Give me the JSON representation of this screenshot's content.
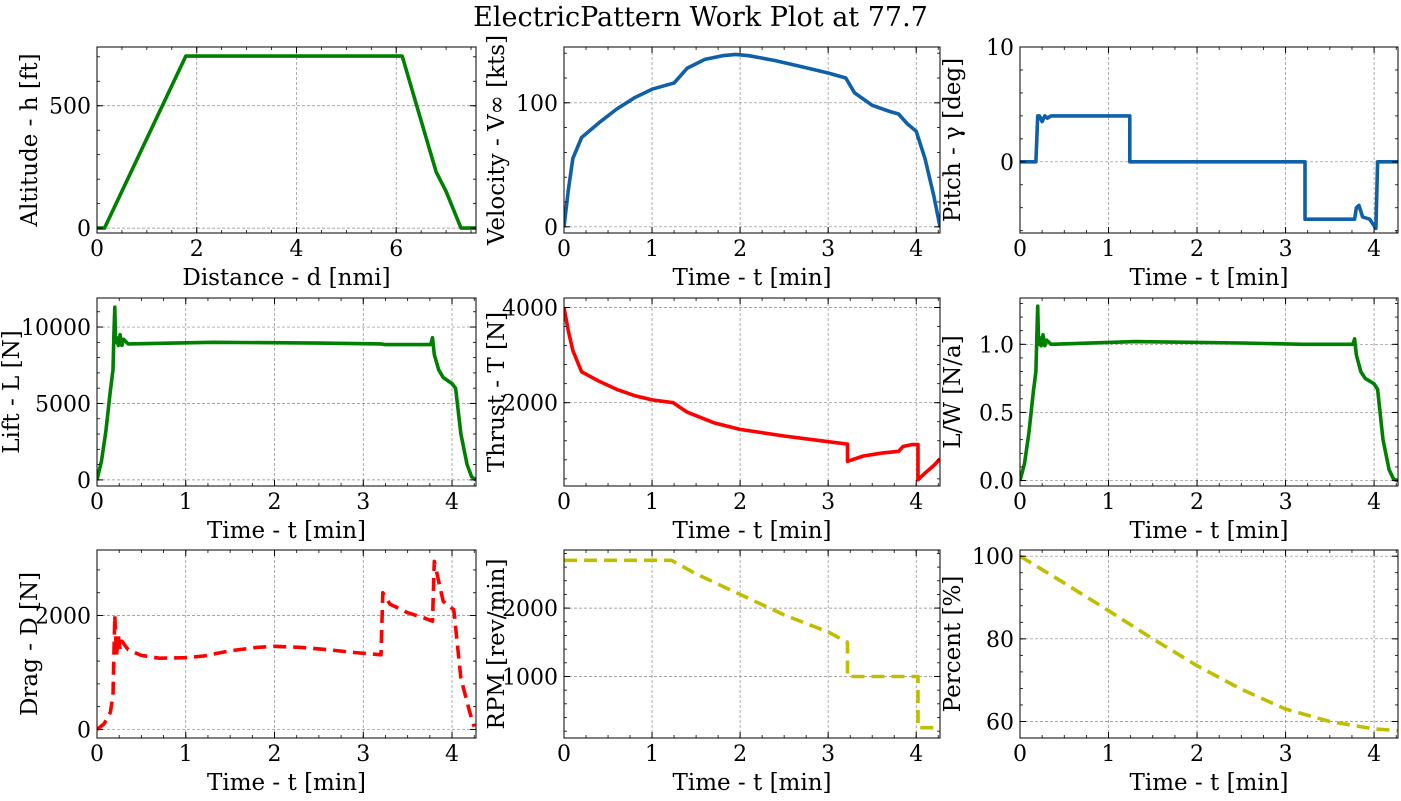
{
  "figure": {
    "title": "ElectricPattern Work Plot at 77.7"
  },
  "chart_data": [
    {
      "id": "altitude",
      "type": "line",
      "color": "#008000",
      "dash": false,
      "xlabel": "Distance - d [nmi]",
      "ylabel": "Altitude - h [ft]",
      "xlim": [
        0,
        7.6
      ],
      "ylim": [
        -20,
        740
      ],
      "xticks": [
        0,
        2,
        4,
        6
      ],
      "yticks": [
        0,
        500
      ],
      "grid": true,
      "series": [
        {
          "x": [
            0,
            0.15,
            1.78,
            6.12,
            6.8,
            7.0,
            7.3,
            7.6
          ],
          "y": [
            0,
            0,
            703,
            703,
            230,
            150,
            0,
            0
          ]
        }
      ]
    },
    {
      "id": "velocity",
      "type": "line",
      "color": "#1060a8",
      "dash": false,
      "xlabel": "Time - t [min]",
      "ylabel": "Velocity - V∞ [kts]",
      "xlim": [
        0,
        4.27
      ],
      "ylim": [
        -5,
        145
      ],
      "xticks": [
        0,
        1,
        2,
        3,
        4
      ],
      "yticks": [
        0,
        100
      ],
      "grid": true,
      "series": [
        {
          "x": [
            0,
            0.05,
            0.1,
            0.2,
            0.4,
            0.6,
            0.8,
            1.0,
            1.2,
            1.25,
            1.4,
            1.6,
            1.8,
            1.95,
            2.1,
            2.4,
            2.7,
            3.0,
            3.2,
            3.3,
            3.5,
            3.7,
            3.8,
            3.9,
            4.0,
            4.1,
            4.2,
            4.27
          ],
          "y": [
            0,
            30,
            55,
            72,
            84,
            95,
            104,
            111,
            115,
            116,
            128,
            135,
            138,
            139,
            138,
            134,
            129,
            124,
            120,
            108,
            98,
            93,
            91,
            83,
            77,
            55,
            25,
            0
          ]
        }
      ]
    },
    {
      "id": "pitch",
      "type": "line",
      "color": "#1060a8",
      "dash": false,
      "xlabel": "Time - t [min]",
      "ylabel": "Pitch - γ [deg]",
      "xlim": [
        0,
        4.27
      ],
      "ylim": [
        -6.2,
        10
      ],
      "xticks": [
        0,
        1,
        2,
        3,
        4
      ],
      "yticks": [
        0,
        10
      ],
      "grid": true,
      "series": [
        {
          "x": [
            0,
            0.18,
            0.2,
            0.22,
            0.25,
            0.28,
            0.31,
            0.35,
            1.24,
            1.24,
            3.22,
            3.22,
            3.78,
            3.8,
            3.83,
            3.87,
            3.95,
            4.02,
            4.04,
            4.27
          ],
          "y": [
            0,
            0,
            4,
            4,
            3.5,
            4,
            3.8,
            4,
            4,
            0,
            0,
            -5,
            -5,
            -4,
            -3.8,
            -4.8,
            -5,
            -5.8,
            0,
            0
          ]
        }
      ]
    },
    {
      "id": "lift",
      "type": "line",
      "color": "#008000",
      "dash": false,
      "xlabel": "Time - t [min]",
      "ylabel": "Lift - L [N]",
      "xlim": [
        0,
        4.27
      ],
      "ylim": [
        -400,
        11900
      ],
      "xticks": [
        0,
        1,
        2,
        3,
        4
      ],
      "yticks": [
        0,
        5000,
        10000
      ],
      "grid": true,
      "series": [
        {
          "x": [
            0,
            0.05,
            0.1,
            0.15,
            0.18,
            0.19,
            0.2,
            0.21,
            0.22,
            0.24,
            0.26,
            0.28,
            0.3,
            0.35,
            1.3,
            2.5,
            3.2,
            3.25,
            3.76,
            3.78,
            3.8,
            3.85,
            3.9,
            4.0,
            4.04,
            4.1,
            4.17,
            4.22,
            4.27
          ],
          "y": [
            0,
            1200,
            3200,
            5800,
            7200,
            9500,
            11300,
            9000,
            9300,
            8800,
            9500,
            8800,
            9200,
            8900,
            9000,
            8950,
            8900,
            8850,
            8850,
            9300,
            8200,
            7200,
            6700,
            6300,
            6000,
            3000,
            1000,
            200,
            0
          ]
        }
      ]
    },
    {
      "id": "thrust",
      "type": "line",
      "color": "#ff0000",
      "dash": false,
      "xlabel": "Time - t [min]",
      "ylabel": "Thrust - T [N]",
      "xlim": [
        0,
        4.27
      ],
      "ylim": [
        250,
        4200
      ],
      "xticks": [
        0,
        1,
        2,
        3,
        4
      ],
      "yticks": [
        2000,
        4000
      ],
      "grid": true,
      "series": [
        {
          "x": [
            0,
            0.05,
            0.1,
            0.2,
            0.4,
            0.6,
            0.8,
            1.0,
            1.24,
            1.4,
            1.7,
            2.0,
            2.5,
            3.0,
            3.22,
            3.22,
            3.4,
            3.6,
            3.8,
            3.85,
            3.95,
            4.02,
            4.02,
            4.1,
            4.2,
            4.27
          ],
          "y": [
            4000,
            3500,
            3100,
            2650,
            2450,
            2280,
            2150,
            2060,
            2000,
            1800,
            1580,
            1440,
            1300,
            1180,
            1130,
            770,
            880,
            940,
            980,
            1080,
            1120,
            1120,
            380,
            520,
            680,
            820
          ]
        }
      ]
    },
    {
      "id": "load-factor",
      "type": "line",
      "color": "#008000",
      "dash": false,
      "xlabel": "Time - t [min]",
      "ylabel": "L/W [N/a]",
      "xlim": [
        0,
        4.27
      ],
      "ylim": [
        -0.04,
        1.34
      ],
      "xticks": [
        0,
        1,
        2,
        3,
        4
      ],
      "yticks": [
        0.0,
        0.5,
        1.0
      ],
      "ytick_labels": [
        "0.0",
        "0.5",
        "1.0"
      ],
      "grid": true,
      "series": [
        {
          "x": [
            0,
            0.05,
            0.1,
            0.15,
            0.18,
            0.19,
            0.2,
            0.21,
            0.22,
            0.24,
            0.26,
            0.28,
            0.3,
            0.35,
            1.3,
            2.5,
            3.2,
            3.25,
            3.76,
            3.78,
            3.8,
            3.85,
            3.9,
            4.0,
            4.04,
            4.1,
            4.17,
            4.22,
            4.27
          ],
          "y": [
            0,
            0.12,
            0.35,
            0.65,
            0.8,
            1.05,
            1.28,
            1.0,
            1.05,
            0.99,
            1.07,
            0.99,
            1.03,
            1.0,
            1.02,
            1.01,
            1.0,
            1.0,
            1.0,
            1.04,
            0.92,
            0.8,
            0.75,
            0.71,
            0.67,
            0.3,
            0.08,
            0.01,
            0
          ]
        }
      ]
    },
    {
      "id": "drag",
      "type": "line",
      "color": "#ff0000",
      "dash": true,
      "xlabel": "Time - t [min]",
      "ylabel": "Drag - D [N]",
      "xlim": [
        0,
        4.27
      ],
      "ylim": [
        -150,
        3150
      ],
      "xticks": [
        0,
        1,
        2,
        3,
        4
      ],
      "yticks": [
        0,
        2000
      ],
      "grid": true,
      "series": [
        {
          "x": [
            0,
            0.08,
            0.15,
            0.18,
            0.2,
            0.22,
            0.24,
            0.26,
            0.28,
            0.35,
            0.5,
            0.7,
            1.0,
            1.2,
            1.5,
            1.8,
            2.0,
            2.3,
            2.6,
            2.9,
            3.2,
            3.22,
            3.3,
            3.5,
            3.7,
            3.78,
            3.8,
            3.85,
            3.9,
            4.02,
            4.1,
            4.2,
            4.25
          ],
          "y": [
            0,
            100,
            300,
            600,
            2000,
            1300,
            1650,
            1400,
            1550,
            1400,
            1300,
            1250,
            1260,
            1290,
            1380,
            1440,
            1460,
            1440,
            1400,
            1350,
            1310,
            2400,
            2200,
            2050,
            1950,
            1900,
            2950,
            2600,
            2250,
            2100,
            900,
            300,
            50
          ]
        }
      ]
    },
    {
      "id": "rpm",
      "type": "line",
      "color": "#bfbf00",
      "dash": true,
      "xlabel": "Time - t [min]",
      "ylabel": "RPM [rev/min]",
      "xlim": [
        0,
        4.27
      ],
      "ylim": [
        100,
        2850
      ],
      "xticks": [
        0,
        1,
        2,
        3,
        4
      ],
      "yticks": [
        1000,
        2000
      ],
      "grid": true,
      "series": [
        {
          "x": [
            0,
            1.22,
            1.5,
            2.0,
            2.5,
            3.0,
            3.22,
            3.22,
            4.02,
            4.02,
            4.27
          ],
          "y": [
            2700,
            2700,
            2500,
            2200,
            1900,
            1650,
            1500,
            1000,
            1000,
            250,
            250
          ]
        }
      ]
    },
    {
      "id": "battery",
      "type": "line",
      "color": "#bfbf00",
      "dash": true,
      "xlabel": "Time - t [min]",
      "ylabel": "Percent [%]",
      "xlim": [
        0,
        4.27
      ],
      "ylim": [
        56,
        101.5
      ],
      "xticks": [
        0,
        1,
        2,
        3,
        4
      ],
      "yticks": [
        60,
        80,
        100
      ],
      "grid": true,
      "series": [
        {
          "x": [
            0,
            0.5,
            1.0,
            1.5,
            2.0,
            2.5,
            3.0,
            3.5,
            4.0,
            4.27
          ],
          "y": [
            100,
            93.5,
            86.8,
            80,
            73.5,
            67.8,
            63,
            60,
            58.2,
            57.8
          ]
        }
      ]
    }
  ]
}
